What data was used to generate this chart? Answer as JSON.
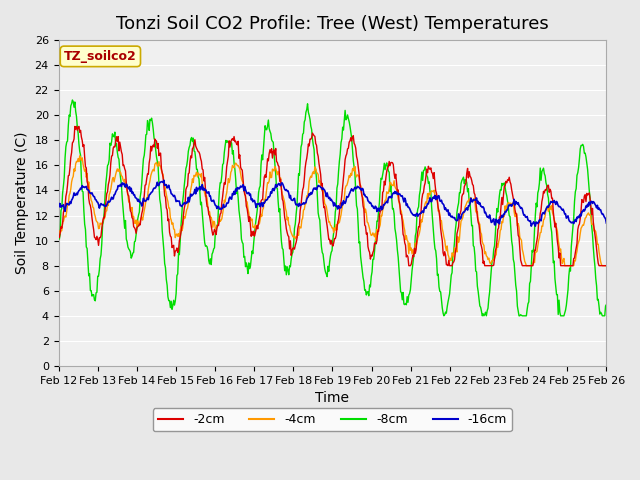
{
  "title": "Tonzi Soil CO2 Profile: Tree (West) Temperatures",
  "xlabel": "Time",
  "ylabel": "Soil Temperature (C)",
  "ylim": [
    0,
    26
  ],
  "yticks": [
    0,
    2,
    4,
    6,
    8,
    10,
    12,
    14,
    16,
    18,
    20,
    22,
    24,
    26
  ],
  "xtick_labels": [
    "Feb 12",
    "Feb 13",
    "Feb 14",
    "Feb 15",
    "Feb 16",
    "Feb 17",
    "Feb 18",
    "Feb 19",
    "Feb 20",
    "Feb 21",
    "Feb 22",
    "Feb 23",
    "Feb 24",
    "Feb 25",
    "Feb 26"
  ],
  "legend_label": "TZ_soilco2",
  "legend_bg": "#ffffcc",
  "legend_border": "#ccaa00",
  "legend_text_color": "#aa0000",
  "colors": {
    "2cm": "#dd0000",
    "4cm": "#ff9900",
    "8cm": "#00dd00",
    "16cm": "#0000cc"
  },
  "line_labels": [
    "-2cm",
    "-4cm",
    "-8cm",
    "-16cm"
  ],
  "bg_color": "#e8e8e8",
  "plot_bg": "#f0f0f0",
  "grid_color": "#ffffff",
  "title_fontsize": 13,
  "axis_label_fontsize": 10
}
